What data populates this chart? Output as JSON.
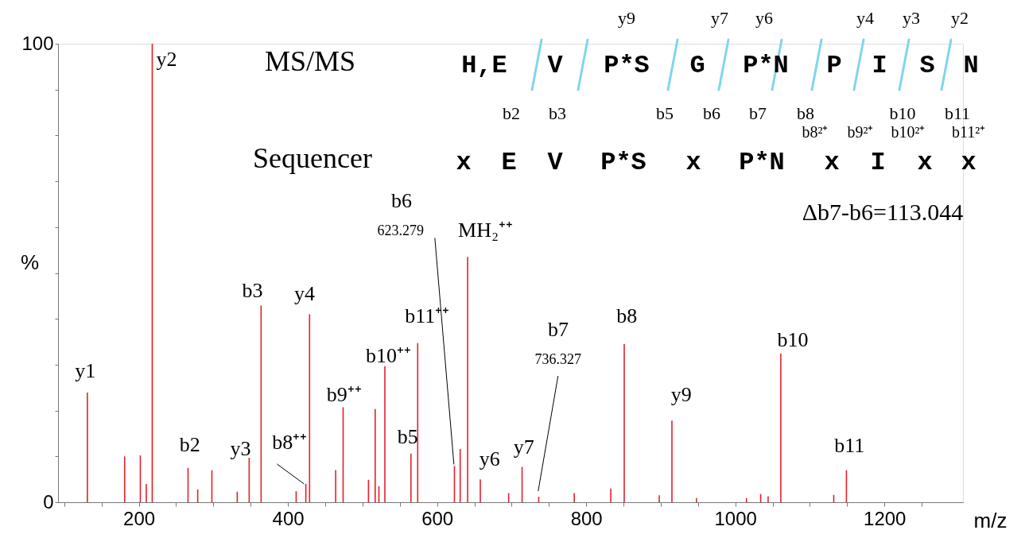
{
  "chart_data": {
    "type": "bar",
    "xlabel": "m/z",
    "ylabel": "%",
    "x": [
      131,
      181,
      202,
      210,
      218,
      266,
      279,
      298,
      332,
      348,
      364,
      411,
      424,
      429,
      464,
      474,
      508,
      517,
      522,
      530,
      565,
      574,
      623.279,
      631,
      641,
      658,
      696,
      714,
      736.327,
      784,
      833,
      851,
      898,
      915,
      948,
      1015,
      1034,
      1044,
      1061,
      1132,
      1149
    ],
    "series": [
      {
        "color": "#e5202a",
        "values": [
          23.9,
          10.0,
          10.2,
          4.0,
          100,
          7.5,
          2.8,
          7.0,
          2.3,
          9.7,
          42.9,
          2.4,
          4.0,
          41.0,
          7.0,
          20.7,
          4.9,
          20.3,
          3.5,
          29.7,
          10.6,
          34.7,
          7.9,
          11.6,
          53.5,
          5.0,
          2.0,
          7.7,
          1.2,
          2.0,
          3.0,
          34.5,
          1.5,
          17.8,
          0.9,
          0.9,
          1.8,
          1.3,
          32.4,
          1.6,
          7.0
        ]
      }
    ],
    "xlim": [
      97,
      1300
    ],
    "xticks": [
      {
        "value": 100,
        "label": null
      },
      {
        "value": 150,
        "label": null
      },
      200,
      {
        "value": 250,
        "label": null
      },
      {
        "value": 300,
        "label": null
      },
      {
        "value": 350,
        "label": null
      },
      400,
      {
        "value": 450,
        "label": null
      },
      {
        "value": 500,
        "label": null
      },
      {
        "value": 550,
        "label": null
      },
      600,
      {
        "value": 650,
        "label": null
      },
      {
        "value": 700,
        "label": null
      },
      {
        "value": 750,
        "label": null
      },
      800,
      {
        "value": 850,
        "label": null
      },
      {
        "value": 900,
        "label": null
      },
      {
        "value": 950,
        "label": null
      },
      1000,
      {
        "value": 1050,
        "label": null
      },
      {
        "value": 1100,
        "label": null
      },
      {
        "value": 1150,
        "label": null
      },
      1200,
      {
        "value": 1250,
        "label": null
      }
    ],
    "ylim": [
      0,
      100
    ],
    "yticks": [
      0,
      {
        "value": 10,
        "label": null
      },
      {
        "value": 20,
        "label": null
      },
      {
        "value": 30,
        "label": null
      },
      {
        "value": 40,
        "label": null
      },
      {
        "value": 50,
        "label": null
      },
      {
        "value": 60,
        "label": null
      },
      {
        "value": 70,
        "label": null
      },
      {
        "value": 80,
        "label": null
      },
      {
        "value": 90,
        "label": null
      },
      100
    ],
    "grid": false,
    "annotations": [
      {
        "text": "y1",
        "x": 131,
        "y": 23.9
      },
      {
        "text": "y2",
        "x": 218,
        "y": 100
      },
      {
        "text": "b2",
        "x": 266,
        "y": 7.5
      },
      {
        "text": "y3",
        "x": 348,
        "y": 9.7
      },
      {
        "text": "b8⁺⁺",
        "x": 424,
        "y": 4.0
      },
      {
        "text": "b3",
        "x": 364,
        "y": 42.9
      },
      {
        "text": "y4",
        "x": 429,
        "y": 41.0
      },
      {
        "text": "b9⁺⁺",
        "x": 474,
        "y": 20.7
      },
      {
        "text": "b10⁺⁺",
        "x": 530,
        "y": 29.7
      },
      {
        "text": "b11⁺⁺",
        "x": 574,
        "y": 34.7
      },
      {
        "text": "b5",
        "x": 565,
        "y": 10.6
      },
      {
        "text": "623.279",
        "x": 623.279,
        "y": 7.9
      },
      {
        "text": "MH₂⁺⁺",
        "x": 641,
        "y": 53.5
      },
      {
        "text": "y6",
        "x": 658,
        "y": 5.0
      },
      {
        "text": "y7",
        "x": 714,
        "y": 7.7
      },
      {
        "text": "736.327",
        "x": 736.327,
        "y": 1.2
      },
      {
        "text": "b8",
        "x": 851,
        "y": 34.5
      },
      {
        "text": "y9",
        "x": 915,
        "y": 17.8
      },
      {
        "text": "b10",
        "x": 1061,
        "y": 32.4
      },
      {
        "text": "b11",
        "x": 1149,
        "y": 7.0
      },
      "MS/MS",
      "Sequencer",
      "Δb7-b6=113.044",
      "H,E",
      "V",
      "P*S",
      "G",
      "P*N",
      "P",
      "I",
      "S",
      "N",
      "y9",
      "y7",
      "y6",
      "y4",
      "y3",
      "y2",
      "b2",
      "b3",
      "b5",
      "b6",
      "b7",
      "b8",
      "b10",
      "b11",
      "b8²⁺",
      "b9²⁺",
      "b10²⁺",
      "b11²⁺",
      "x",
      "E",
      "V",
      "P*S",
      "x",
      "P*N",
      "x",
      "I",
      "x",
      "x",
      "b6",
      "b7"
    ]
  }
}
